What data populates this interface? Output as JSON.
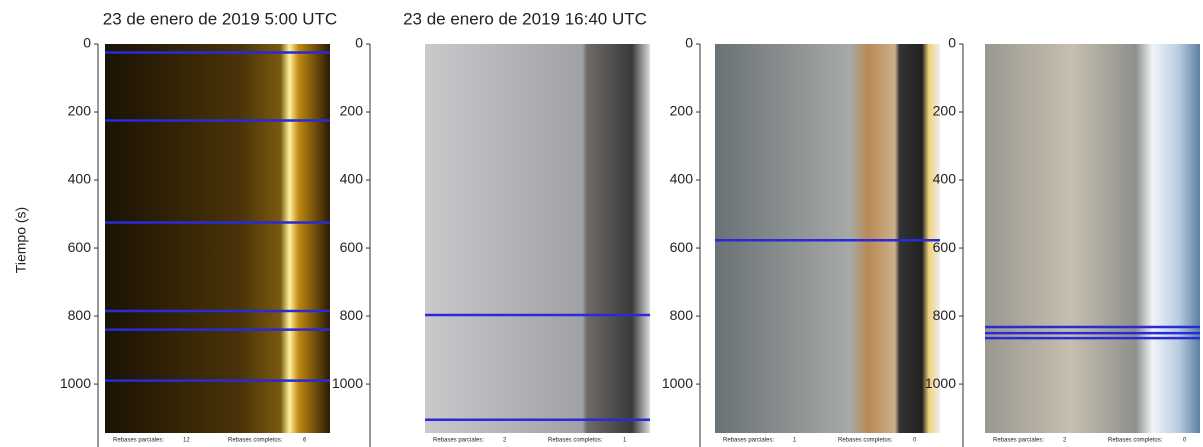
{
  "figure": {
    "ylabel": "Tiempo (s)",
    "ylim": [
      0,
      1185
    ],
    "yticks": [
      0,
      200,
      400,
      600,
      800,
      1000
    ]
  },
  "panels": [
    {
      "title": "23 de enero de 2019 5:00 UTC",
      "events": [
        25,
        225,
        525,
        785,
        840,
        990
      ],
      "footer": {
        "partial_label": "Rebases parciales:",
        "partial": 12,
        "complete_label": "Rebases completos:",
        "complete": 6
      }
    },
    {
      "title": "23 de enero de 2019 16:40 UTC",
      "events": [
        797,
        1105
      ],
      "footer": {
        "partial_label": "Rebases parciales:",
        "partial": 2,
        "complete_label": "Rebases completos:",
        "complete": 1
      }
    },
    {
      "events": [
        577
      ],
      "footer": {
        "partial_label": "Rebases parciales:",
        "partial": 1,
        "complete_label": "Rebases completos:",
        "complete": 0
      }
    },
    {
      "events": [
        832,
        850,
        865
      ],
      "footer": {
        "partial_label": "Rebases parciales:",
        "partial": 2,
        "complete_label": "Rebases completos:",
        "complete": 0
      }
    }
  ]
}
